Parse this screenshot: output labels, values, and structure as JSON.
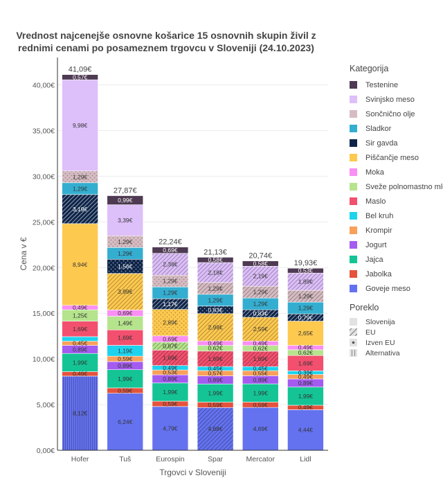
{
  "title": "Vrednost najcenejše osnovne košarice 15 osnovnih skupin živil z rednimi cenami po posameznem trgovcu v Sloveniji (24.10.2023)",
  "legend": {
    "category_heading": "Kategorija",
    "origin_heading": "Poreklo",
    "origin_items": [
      {
        "label": "Slovenija",
        "icon": "solid-square-icon"
      },
      {
        "label": "EU",
        "icon": "diagonal-hatch-icon"
      },
      {
        "label": "Izven EU",
        "icon": "dot-pattern-icon"
      },
      {
        "label": "Alternativa",
        "icon": "vertical-lines-icon"
      }
    ]
  },
  "chart_data": {
    "type": "bar",
    "stacked": true,
    "xlabel": "Trgovci v Sloveniji",
    "ylabel": "Cena v €",
    "ylim": [
      0,
      43
    ],
    "yticks": [
      0,
      5,
      10,
      15,
      20,
      25,
      30,
      35,
      40
    ],
    "ytick_labels": [
      "0,00€",
      "5,00€",
      "10,00€",
      "15,00€",
      "20,00€",
      "25,00€",
      "30,00€",
      "35,00€",
      "40,00€"
    ],
    "grid": true,
    "legend_position": "right",
    "categories": [
      "Hofer",
      "Tuš",
      "Eurospin",
      "Spar",
      "Mercator",
      "Lidl"
    ],
    "totals": [
      41.09,
      27.87,
      22.24,
      21.13,
      20.74,
      19.93
    ],
    "total_labels": [
      "41,09€",
      "27,87€",
      "22,24€",
      "21,13€",
      "20,74€",
      "19,93€"
    ],
    "series": [
      {
        "name": "Goveje meso",
        "color": "#6472f0",
        "values": [
          8.12,
          6.24,
          4.79,
          4.68,
          4.69,
          4.44
        ],
        "labels": [
          "8,12€",
          "6,24€",
          "4,79€",
          "4,68€",
          "4,69€",
          "4,44€"
        ],
        "origin": [
          "alternativa",
          "slovenija",
          "slovenija",
          "eu",
          "slovenija",
          "slovenija"
        ]
      },
      {
        "name": "Jabolka",
        "color": "#e5533c",
        "values": [
          0.49,
          0.59,
          0.59,
          0.59,
          0.59,
          0.49
        ],
        "labels": [
          "0,49€",
          "0,59€",
          "0,59€",
          "0,59€",
          "0,59€",
          "0,49€"
        ],
        "origin": [
          "slovenija",
          "slovenija",
          "slovenija",
          "slovenija",
          "slovenija",
          "slovenija"
        ]
      },
      {
        "name": "Jajca",
        "color": "#14c495",
        "values": [
          1.99,
          1.99,
          1.99,
          1.99,
          1.99,
          1.99
        ],
        "labels": [
          "1,99€",
          "1,99€",
          "1,99€",
          "1,99€",
          "1,99€",
          "1,99€"
        ],
        "origin": [
          "slovenija",
          "slovenija",
          "slovenija",
          "slovenija",
          "slovenija",
          "slovenija"
        ]
      },
      {
        "name": "Jogurt",
        "color": "#a35bf0",
        "values": [
          0.89,
          0.89,
          0.89,
          0.89,
          0.89,
          0.89
        ],
        "labels": [
          "0,89€",
          "0,89€",
          "0,89€",
          "0,89€",
          "0,89€",
          "0,89€"
        ],
        "origin": [
          "slovenija",
          "slovenija",
          "slovenija",
          "slovenija",
          "slovenija",
          "slovenija"
        ]
      },
      {
        "name": "Krompir",
        "color": "#f9a05a",
        "values": [
          0.45,
          0.59,
          0.53,
          0.57,
          0.55,
          0.49
        ],
        "labels": [
          "0,45€",
          "0,59€",
          "0,53€",
          "0,57€",
          "0,55€",
          "0,49€"
        ],
        "origin": [
          "slovenija",
          "slovenija",
          "slovenija",
          "slovenija",
          "slovenija",
          "slovenija"
        ]
      },
      {
        "name": "Bel kruh",
        "color": "#1ed3ee",
        "values": [
          0.5,
          1.19,
          0.49,
          0.45,
          0.45,
          0.39
        ],
        "labels": [
          "",
          "1,19€",
          "0,49€",
          "0,45€",
          "0,45€",
          "0,39€"
        ],
        "origin": [
          "slovenija",
          "slovenija",
          "slovenija",
          "slovenija",
          "slovenija",
          "slovenija"
        ]
      },
      {
        "name": "Maslo",
        "color": "#f2506e",
        "values": [
          1.69,
          1.69,
          1.69,
          1.69,
          1.69,
          1.69
        ],
        "labels": [
          "1,69€",
          "1,69€",
          "1,69€",
          "1,69€",
          "1,69€",
          "1,69€"
        ],
        "origin": [
          "slovenija",
          "slovenija",
          "eu",
          "eu",
          "eu",
          "slovenija"
        ]
      },
      {
        "name": "Sveže polnomastno mleko",
        "color": "#b5e48c",
        "values": [
          1.25,
          1.49,
          0.87,
          0.62,
          0.62,
          0.62
        ],
        "labels": [
          "1,25€",
          "1,49€",
          "0,87€",
          "0,62€",
          "0,62€",
          "0,62€"
        ],
        "origin": [
          "slovenija",
          "slovenija",
          "eu",
          "slovenija",
          "slovenija",
          "slovenija"
        ]
      },
      {
        "name": "Moka",
        "color": "#fa8ff4",
        "values": [
          0.49,
          0.69,
          0.69,
          0.49,
          0.49,
          0.49
        ],
        "labels": [
          "0,49€",
          "0,69€",
          "0,69€",
          "0,49€",
          "0,49€",
          "0,49€"
        ],
        "origin": [
          "slovenija",
          "slovenija",
          "slovenija",
          "slovenija",
          "slovenija",
          "slovenija"
        ]
      },
      {
        "name": "Piščančje meso",
        "color": "#fec94f",
        "values": [
          8.94,
          3.99,
          2.89,
          2.99,
          2.59,
          2.65
        ],
        "labels": [
          "8,94€",
          "3,99€",
          "2,89€",
          "2,99€",
          "2,59€",
          "2,65€"
        ],
        "origin": [
          "slovenija",
          "eu",
          "izven",
          "eu",
          "eu",
          "slovenija"
        ]
      },
      {
        "name": "Sir gavda",
        "color": "#0d2448",
        "values": [
          3.19,
          1.56,
          1.17,
          0.83,
          0.83,
          0.79
        ],
        "labels": [
          "3,19€",
          "1,56€",
          "1,17€",
          "0,83€",
          "0,83€",
          "0,79€"
        ],
        "origin": [
          "eu",
          "izven",
          "eu",
          "izven",
          "eu",
          "eu"
        ]
      },
      {
        "name": "Sladkor",
        "color": "#34aed0",
        "values": [
          1.29,
          1.29,
          1.29,
          1.29,
          1.29,
          1.29
        ],
        "labels": [
          "1,29€",
          "1,29€",
          "1,29€",
          "1,29€",
          "1,29€",
          "1,29€"
        ],
        "origin": [
          "slovenija",
          "slovenija",
          "slovenija",
          "slovenija",
          "slovenija",
          "slovenija"
        ]
      },
      {
        "name": "Sončnično olje",
        "color": "#d6bcc2",
        "values": [
          1.29,
          1.29,
          1.29,
          1.29,
          1.29,
          1.29
        ],
        "labels": [
          "1,29€",
          "1,29€",
          "1,29€",
          "1,29€",
          "1,29€",
          "1,29€"
        ],
        "origin": [
          "izven",
          "izven",
          "izven",
          "eu",
          "eu",
          "eu"
        ]
      },
      {
        "name": "Svinjsko meso",
        "color": "#ddbffa",
        "values": [
          9.98,
          3.39,
          2.39,
          2.18,
          2.19,
          1.89
        ],
        "labels": [
          "9,98€",
          "3,39€",
          "2,39€",
          "2,18€",
          "2,19€",
          "1,89€"
        ],
        "origin": [
          "slovenija",
          "slovenija",
          "eu",
          "eu",
          "eu",
          "eu"
        ]
      },
      {
        "name": "Testenine",
        "color": "#4e3a52",
        "values": [
          0.57,
          0.99,
          0.69,
          0.58,
          0.58,
          0.53
        ],
        "labels": [
          "0,57€",
          "0,99€",
          "0,69€",
          "0,58€",
          "0,58€",
          "0,53€"
        ],
        "origin": [
          "slovenija",
          "slovenija",
          "slovenija",
          "slovenija",
          "slovenija",
          "slovenija"
        ]
      }
    ]
  }
}
